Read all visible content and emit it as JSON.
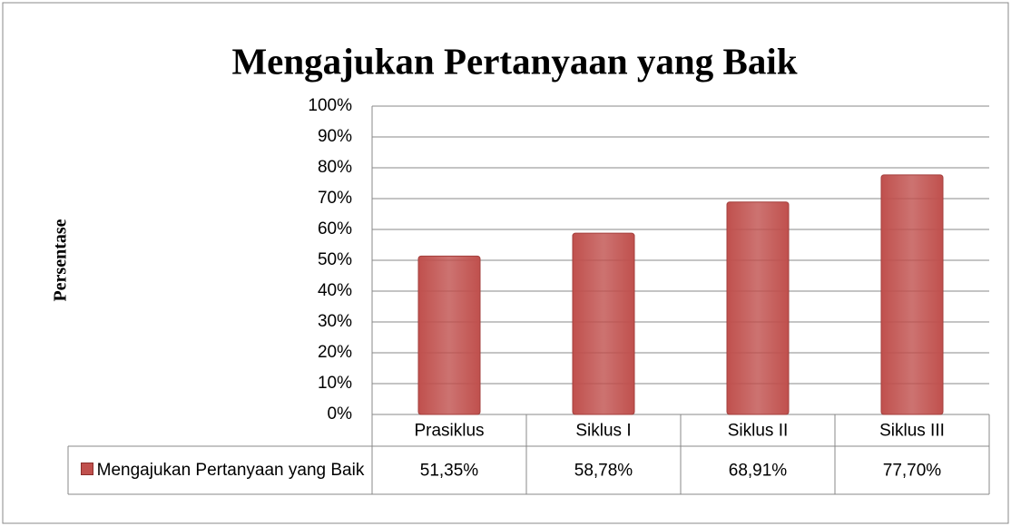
{
  "chart_data": {
    "type": "bar",
    "title": "Mengajukan Pertanyaan yang Baik",
    "y_label": "Persentase",
    "categories": [
      "Prasiklus",
      "Siklus I",
      "Siklus II",
      "Siklus III"
    ],
    "series": [
      {
        "name": "Mengajukan Pertanyaan yang Baik",
        "color": "#c0504d",
        "values": [
          51.35,
          58.78,
          68.91,
          77.7
        ],
        "value_labels": [
          "51,35%",
          "58,78%",
          "68,91%",
          "77,70%"
        ]
      }
    ],
    "ylim": [
      0,
      100
    ],
    "yticks": [
      {
        "value": 0,
        "label": "0%"
      },
      {
        "value": 10,
        "label": "10%"
      },
      {
        "value": 20,
        "label": "20%"
      },
      {
        "value": 30,
        "label": "30%"
      },
      {
        "value": 40,
        "label": "40%"
      },
      {
        "value": 50,
        "label": "50%"
      },
      {
        "value": 60,
        "label": "60%"
      },
      {
        "value": 70,
        "label": "70%"
      },
      {
        "value": 80,
        "label": "80%"
      },
      {
        "value": 90,
        "label": "90%"
      },
      {
        "value": 100,
        "label": "100%"
      }
    ],
    "grid": true
  }
}
